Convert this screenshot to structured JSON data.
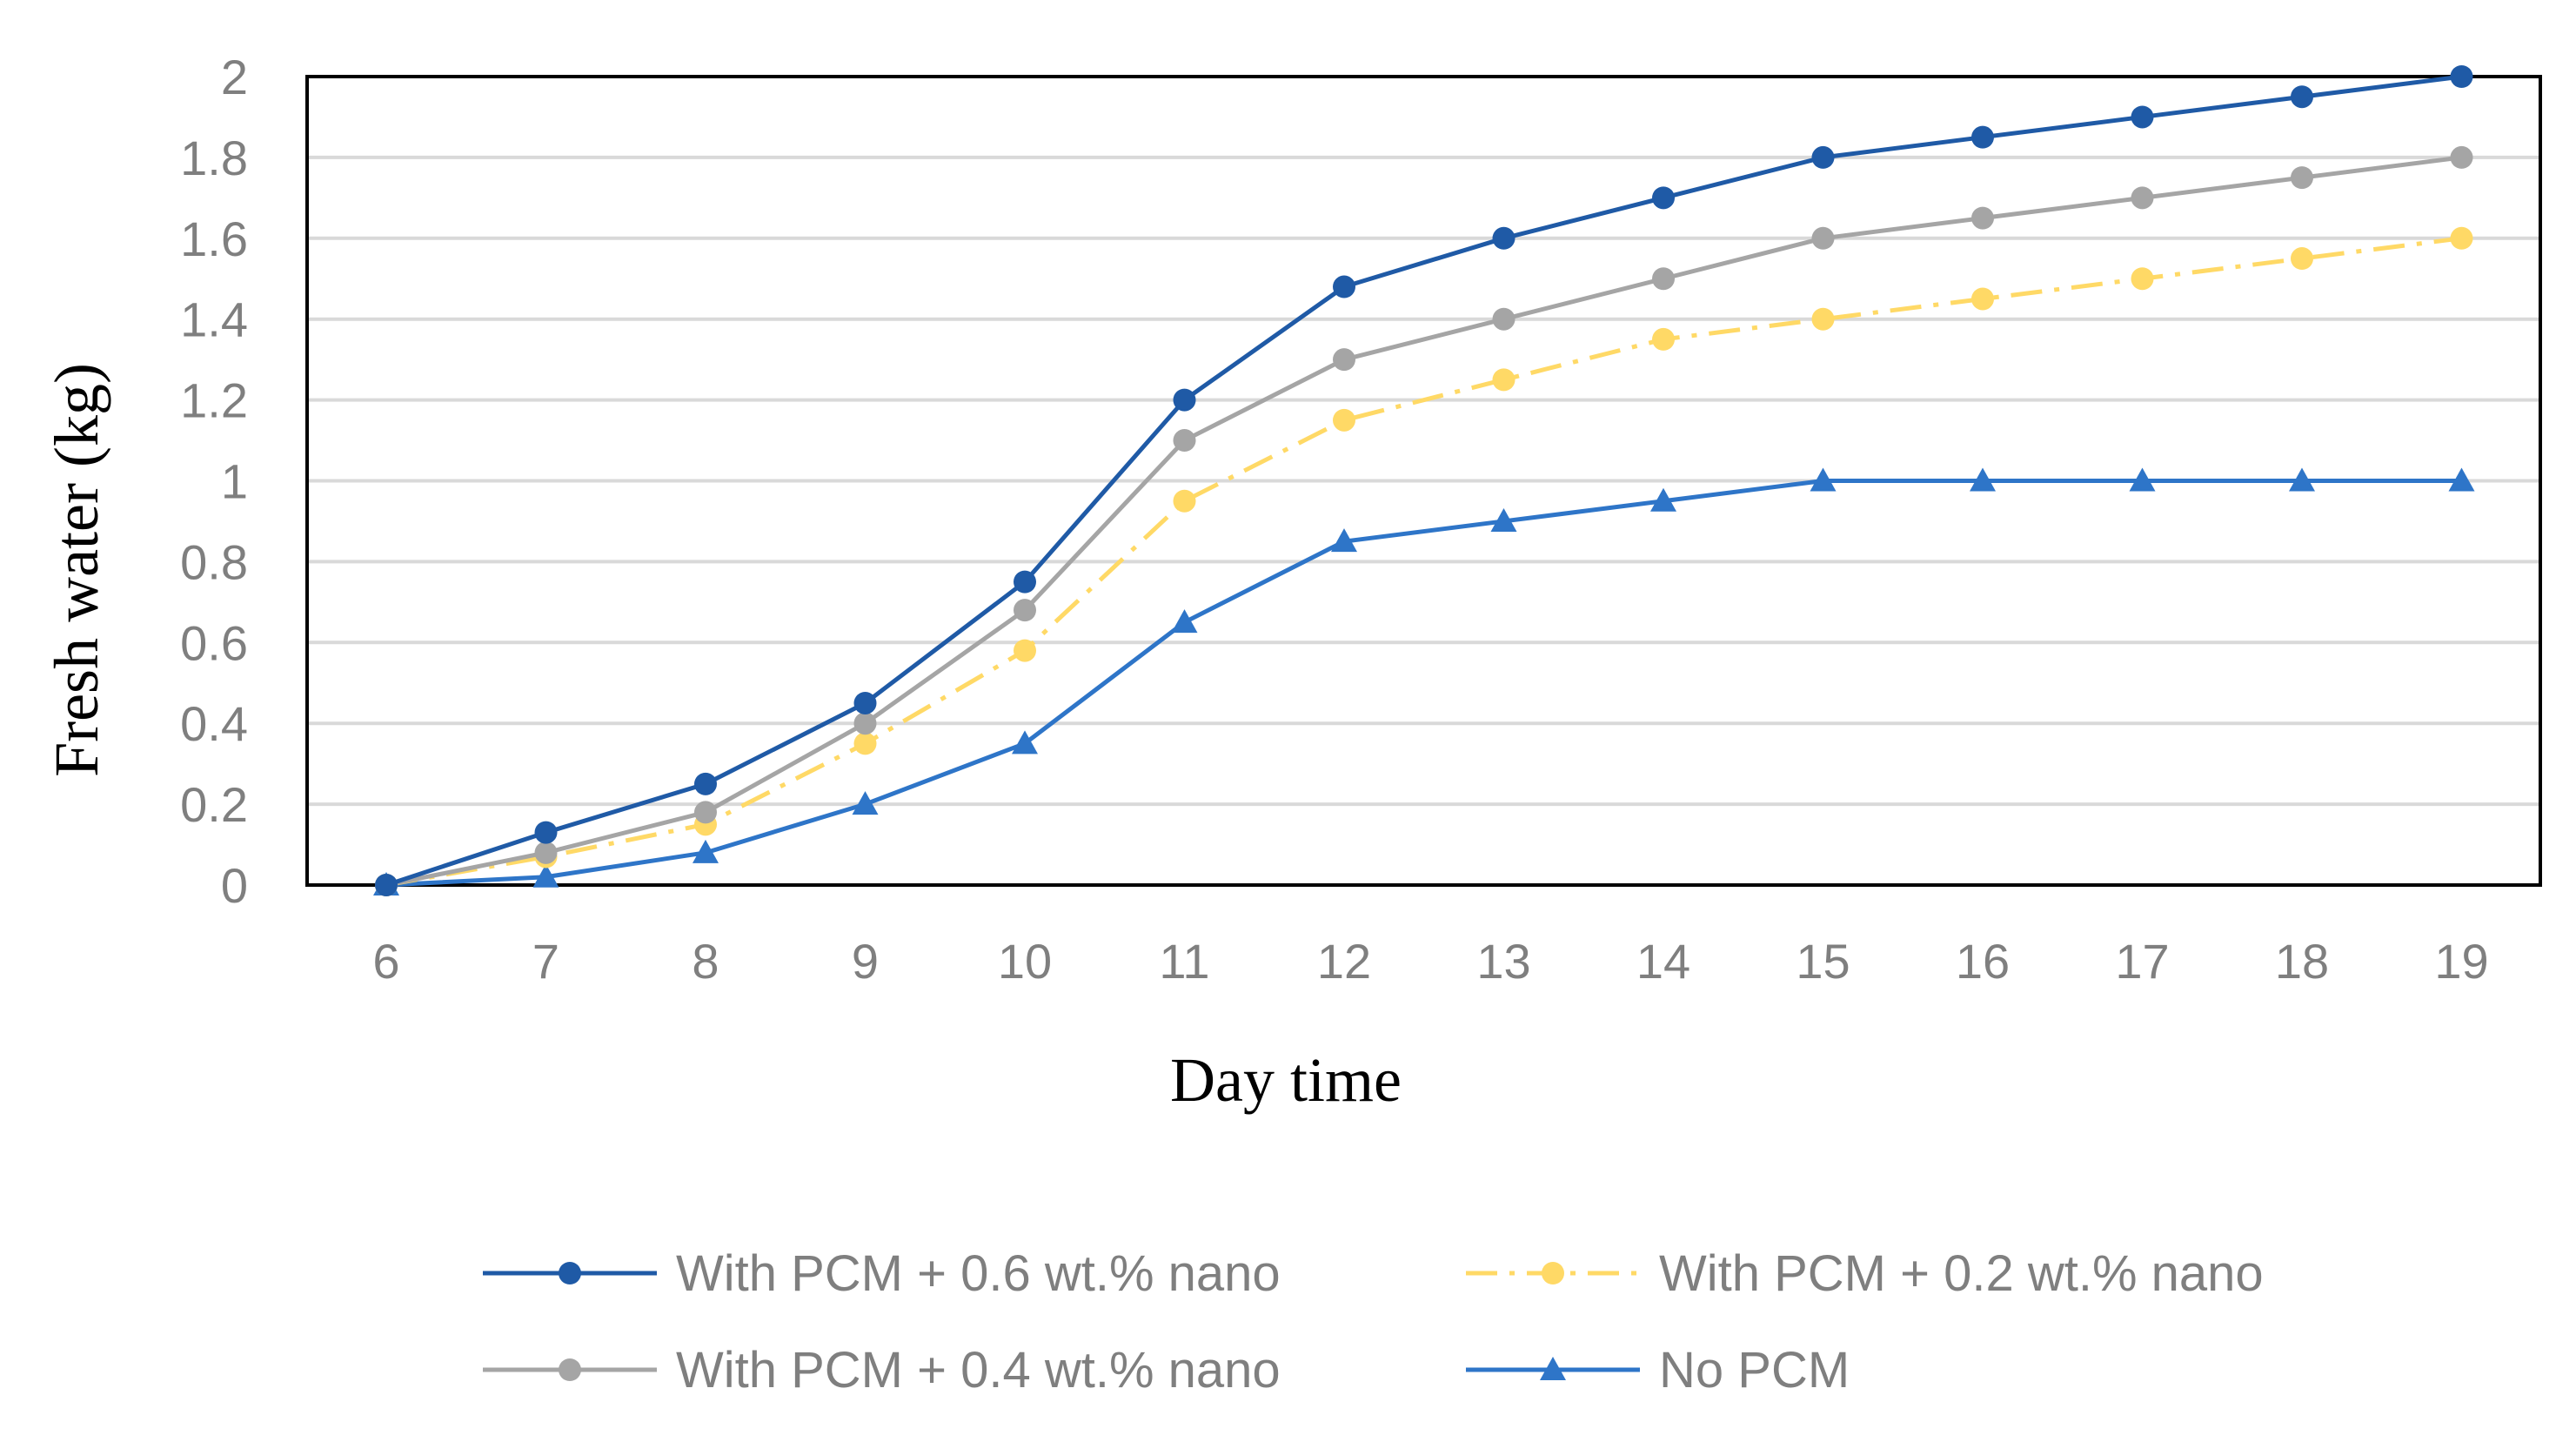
{
  "chart_data": {
    "type": "line",
    "title": "",
    "xlabel": "Day time",
    "ylabel": "Fresh water (kg)",
    "x": [
      6,
      7,
      8,
      9,
      10,
      11,
      12,
      13,
      14,
      15,
      16,
      17,
      18,
      19
    ],
    "ylim": [
      0,
      2
    ],
    "yticks": [
      "0",
      "0.2",
      "0.4",
      "0.6",
      "0.8",
      "1",
      "1.2",
      "1.4",
      "1.6",
      "1.8",
      "2"
    ],
    "grid": true,
    "legend": "bottom",
    "series": [
      {
        "name": "With  PCM + 0.6 wt.% nano",
        "color": "#1f5aa6",
        "marker": "circle",
        "dash": "solid",
        "values": [
          0,
          0.13,
          0.25,
          0.45,
          0.75,
          1.2,
          1.48,
          1.6,
          1.7,
          1.8,
          1.85,
          1.9,
          1.95,
          2.0
        ]
      },
      {
        "name": "With PCM + 0.4 wt.% nano",
        "color": "#a5a5a5",
        "marker": "circle",
        "dash": "solid",
        "values": [
          0,
          0.08,
          0.18,
          0.4,
          0.68,
          1.1,
          1.3,
          1.4,
          1.5,
          1.6,
          1.65,
          1.7,
          1.75,
          1.8
        ]
      },
      {
        "name": "With  PCM + 0.2 wt.% nano",
        "color": "#ffd966",
        "marker": "circle",
        "dash": "dashdot",
        "values": [
          0,
          0.07,
          0.15,
          0.35,
          0.58,
          0.95,
          1.15,
          1.25,
          1.35,
          1.4,
          1.45,
          1.5,
          1.55,
          1.6
        ]
      },
      {
        "name": "No PCM",
        "color": "#2e75c8",
        "marker": "triangle",
        "dash": "solid",
        "values": [
          0,
          0.02,
          0.08,
          0.2,
          0.35,
          0.65,
          0.85,
          0.9,
          0.95,
          1.0,
          1.0,
          1.0,
          1.0,
          1.0
        ]
      }
    ]
  }
}
